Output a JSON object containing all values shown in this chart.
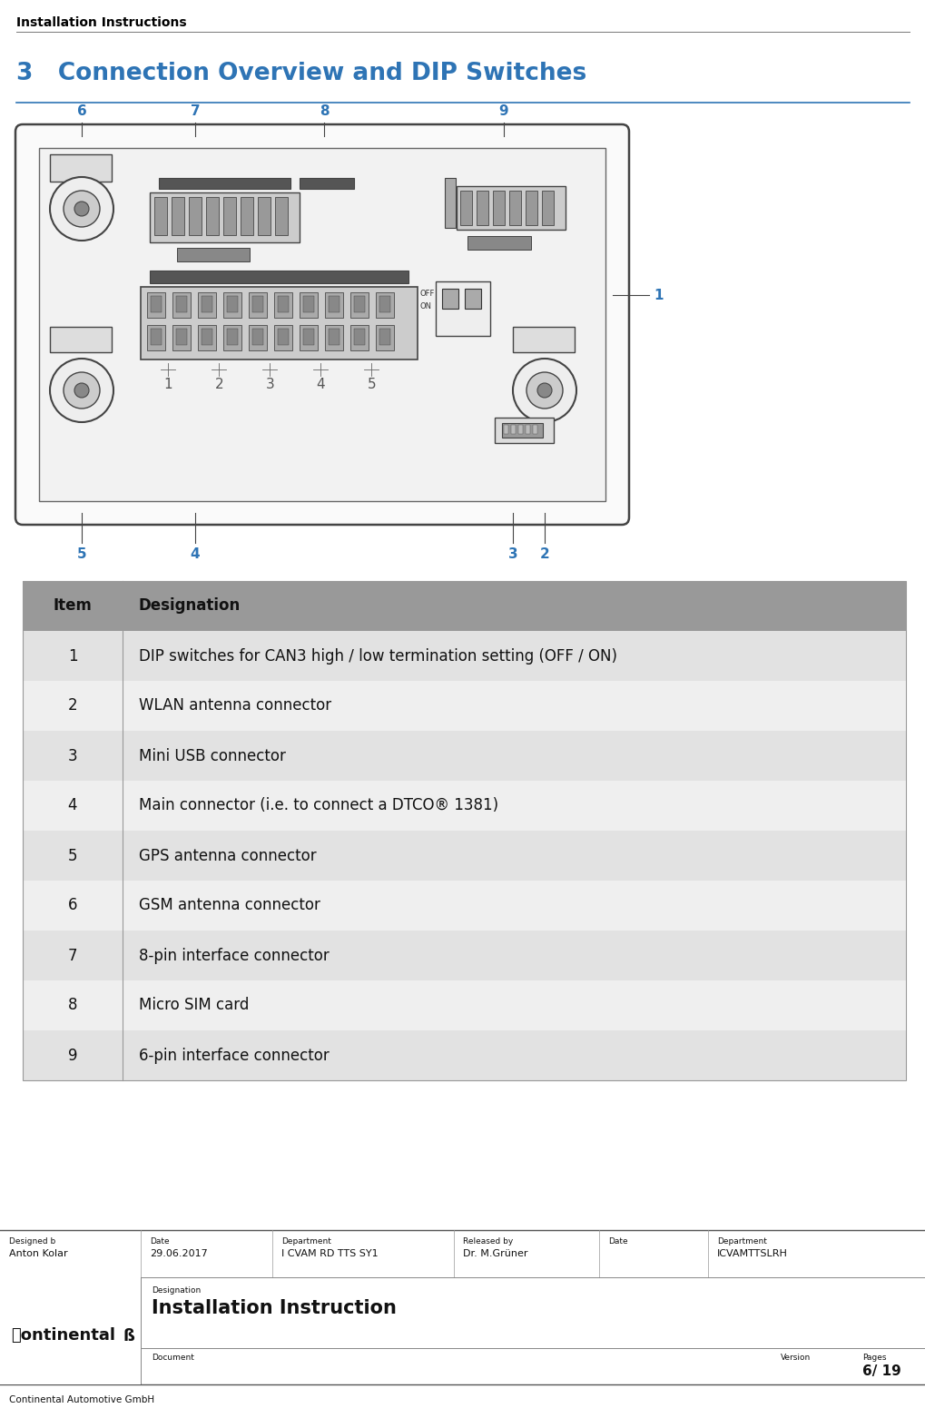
{
  "page_title": "Installation Instructions",
  "section_number": "3",
  "section_title": "Connection Overview and DIP Switches",
  "section_title_color": "#2E74B5",
  "table_header": [
    "Item",
    "Designation"
  ],
  "table_rows": [
    [
      "1",
      "DIP switches for CAN3 high / low termination setting (OFF / ON)"
    ],
    [
      "2",
      "WLAN antenna connector"
    ],
    [
      "3",
      "Mini USB connector"
    ],
    [
      "4",
      "Main connector (i.e. to connect a DTCO® 1381)"
    ],
    [
      "5",
      "GPS antenna connector"
    ],
    [
      "6",
      "GSM antenna connector"
    ],
    [
      "7",
      "8-pin interface connector"
    ],
    [
      "8",
      "Micro SIM card"
    ],
    [
      "9",
      "6-pin interface connector"
    ]
  ],
  "header_bg": "#999999",
  "row_bg_odd": "#E2E2E2",
  "row_bg_even": "#EFEFEF",
  "footer_meta": {
    "col1_label": "Designed b",
    "col1_value": "Anton Kolar",
    "col2_label": "Date",
    "col2_value": "29.06.2017",
    "col3_label": "Department",
    "col3_value": "I CVAM RD TTS SY1",
    "col4_label": "Released by",
    "col4_value": "Dr. M.Grüner",
    "col5_label": "Date",
    "col5_value": "",
    "col6_label": "Department",
    "col6_value": "ICVAMTTSLRH"
  },
  "footer_designation": "Installation Instruction",
  "footer_document_label": "Document",
  "footer_version_label": "Version",
  "footer_pages_label": "Pages",
  "footer_pages_value": "6/ 19",
  "footer_bottom": "Continental Automotive GmbH",
  "background_color": "#FFFFFF",
  "text_color": "#000000",
  "device_line_color": "#444444",
  "label_color": "#2E74B5"
}
